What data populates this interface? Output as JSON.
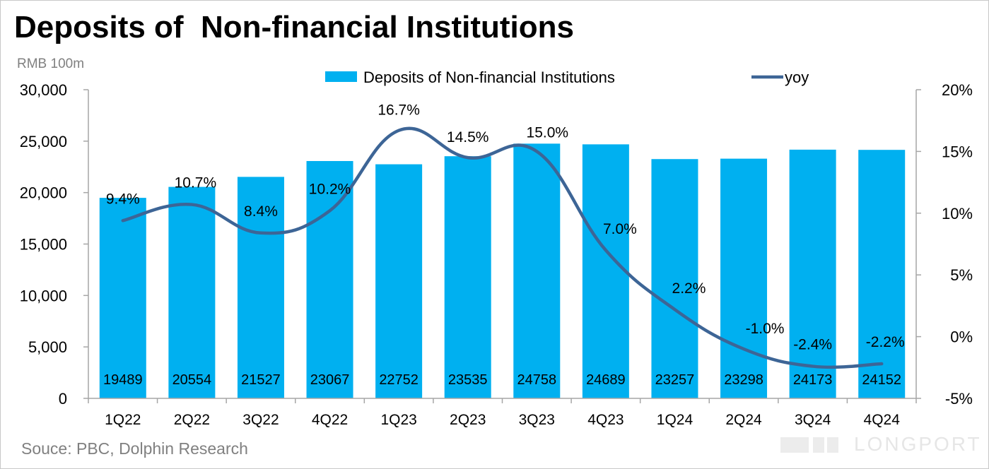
{
  "title": "Deposits of  Non-financial Institutions",
  "unit_label": "RMB 100m",
  "source": "Souce: PBC, Dolphin Research",
  "watermark": "LONGPORT",
  "colors": {
    "bar": "#00b0f0",
    "line": "#3d6596",
    "axis": "#a6a6a6",
    "text": "#000000"
  },
  "chart_data": {
    "type": "bar",
    "title": "Deposits of  Non-financial Institutions",
    "categories": [
      "1Q22",
      "2Q22",
      "3Q22",
      "4Q22",
      "1Q23",
      "2Q23",
      "3Q23",
      "4Q23",
      "1Q24",
      "2Q24",
      "3Q24",
      "4Q24"
    ],
    "series": [
      {
        "name": "Deposits of  Non-financial Institutions",
        "type": "bar",
        "axis": "left",
        "values": [
          19489,
          20554,
          21527,
          23067,
          22752,
          23535,
          24758,
          24689,
          23257,
          23298,
          24173,
          24152
        ],
        "labels": [
          "19489",
          "20554",
          "21527",
          "23067",
          "22752",
          "23535",
          "24758",
          "24689",
          "23257",
          "23298",
          "24173",
          "24152"
        ]
      },
      {
        "name": "yoy",
        "type": "line",
        "axis": "right",
        "values": [
          9.4,
          10.7,
          8.4,
          10.2,
          16.7,
          14.5,
          15.0,
          7.0,
          2.2,
          -1.0,
          -2.4,
          -2.2
        ],
        "labels": [
          "9.4%",
          "10.7%",
          "8.4%",
          "10.2%",
          "16.7%",
          "14.5%",
          "15.0%",
          "7.0%",
          "2.2%",
          "-1.0%",
          "-2.4%",
          "-2.2%"
        ]
      }
    ],
    "y_left": {
      "range": [
        0,
        30000
      ],
      "ticks": [
        0,
        5000,
        10000,
        15000,
        20000,
        25000,
        30000
      ],
      "tick_labels": [
        "0",
        "5,000",
        "10,000",
        "15,000",
        "20,000",
        "25,000",
        "30,000"
      ]
    },
    "y_right": {
      "range": [
        -5,
        20
      ],
      "ticks": [
        -5,
        0,
        5,
        10,
        15,
        20
      ],
      "tick_labels": [
        "-5%",
        "0%",
        "5%",
        "10%",
        "15%",
        "20%"
      ]
    },
    "grid": false,
    "legend_position": "top"
  }
}
